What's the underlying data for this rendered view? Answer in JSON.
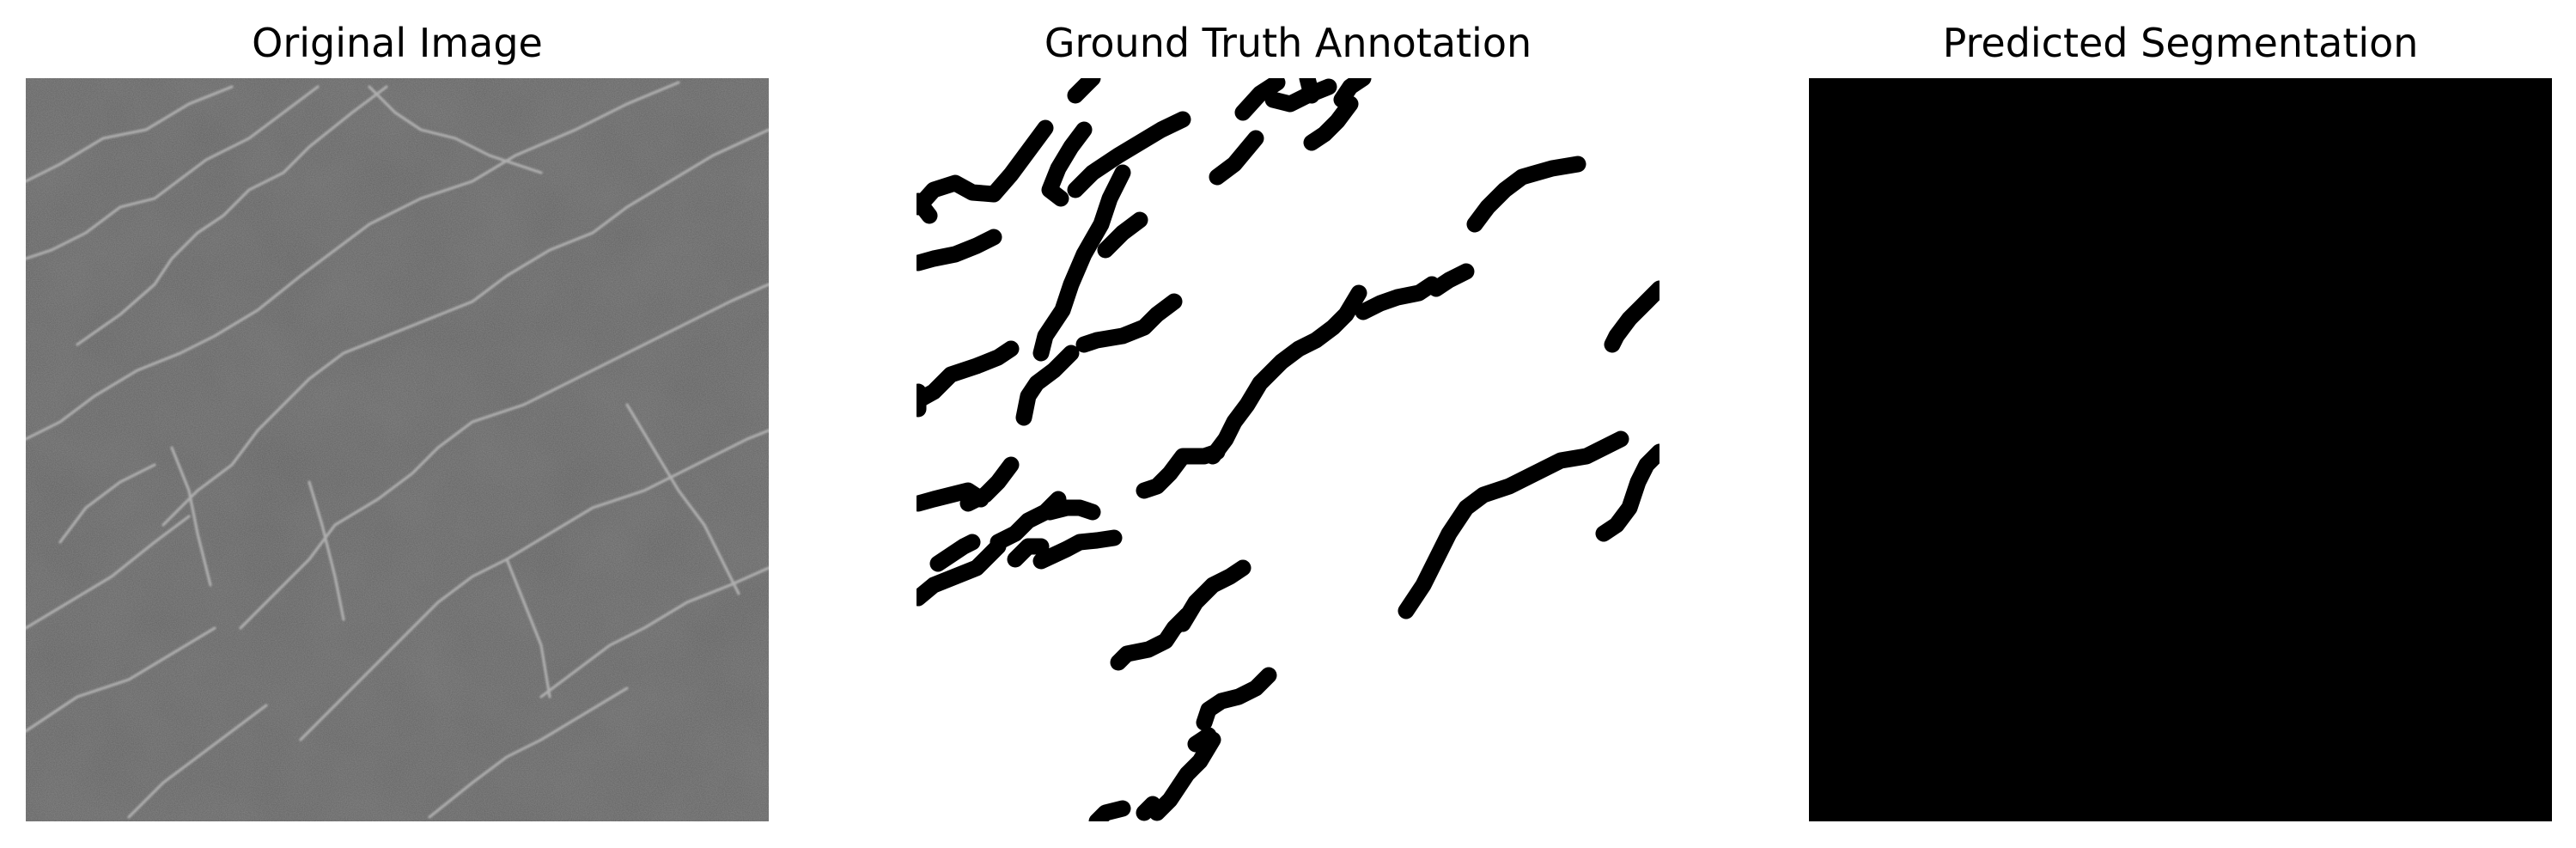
{
  "figure": {
    "panels": [
      {
        "title": "Original Image",
        "content": "grayscale-crack-texture"
      },
      {
        "title": "Ground Truth Annotation",
        "content": "binary-crack-mask"
      },
      {
        "title": "Predicted Segmentation",
        "content": "all-black-mask"
      }
    ]
  },
  "colors": {
    "background": "#ffffff",
    "mask_foreground": "#000000",
    "mask_background": "#ffffff",
    "texture_base": "#5e5e5e",
    "crack_highlight": "#b4b4b4"
  }
}
